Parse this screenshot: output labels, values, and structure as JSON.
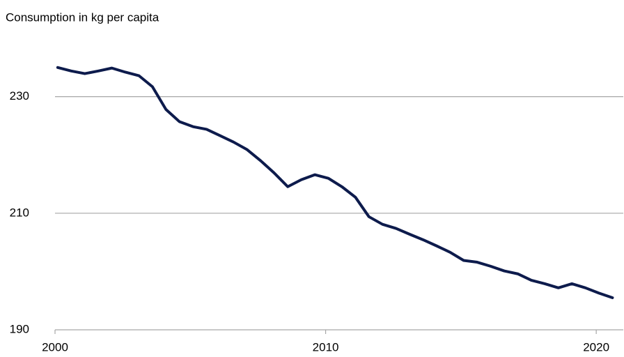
{
  "chart_data": {
    "type": "line",
    "title": "Consumption in kg per capita",
    "x": [
      2000.1,
      2000.6,
      2001.1,
      2001.6,
      2002.1,
      2002.6,
      2003.1,
      2003.6,
      2004.1,
      2004.6,
      2005.1,
      2005.6,
      2006.1,
      2006.6,
      2007.1,
      2007.6,
      2008.1,
      2008.6,
      2009.1,
      2009.6,
      2010.1,
      2010.6,
      2011.1,
      2011.6,
      2012.1,
      2012.6,
      2013.1,
      2013.6,
      2014.1,
      2014.6,
      2015.1,
      2015.6,
      2016.1,
      2016.6,
      2017.1,
      2017.6,
      2018.1,
      2018.6,
      2019.1,
      2019.6,
      2020.1,
      2020.6
    ],
    "series": [
      {
        "name": "Consumption",
        "color": "#0d1b4c",
        "values": [
          235.0,
          234.4,
          233.95,
          234.4,
          234.9,
          234.2,
          233.6,
          231.7,
          227.8,
          225.7,
          224.85,
          224.4,
          223.3,
          222.2,
          220.9,
          219.0,
          216.9,
          214.55,
          215.75,
          216.6,
          216.0,
          214.55,
          212.75,
          209.4,
          208.1,
          207.4,
          206.4,
          205.45,
          204.4,
          203.3,
          201.9,
          201.6,
          200.9,
          200.1,
          199.6,
          198.5,
          197.9,
          197.2,
          197.9,
          197.2,
          196.3,
          195.5
        ]
      }
    ],
    "xlim": [
      2000,
      2021
    ],
    "xticks": [
      2000,
      2010,
      2020
    ],
    "ylim": [
      190,
      240
    ],
    "yticks": [
      190,
      210,
      230
    ],
    "grid": true
  }
}
